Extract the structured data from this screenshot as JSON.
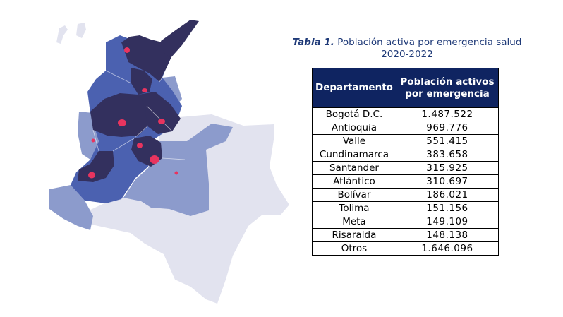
{
  "caption": {
    "label": "Tabla 1.",
    "text": "Población activa por emergencia salud 2020-2022"
  },
  "table": {
    "headers": [
      "Departamento",
      "Población activos por emergencia"
    ],
    "rows": [
      {
        "departamento": "Bogotá D.C.",
        "poblacion": "1.487.522"
      },
      {
        "departamento": "Antioquia",
        "poblacion": "969.776"
      },
      {
        "departamento": "Valle",
        "poblacion": "551.415"
      },
      {
        "departamento": "Cundinamarca",
        "poblacion": "383.658"
      },
      {
        "departamento": "Santander",
        "poblacion": "315.925"
      },
      {
        "departamento": "Atlántico",
        "poblacion": "310.697"
      },
      {
        "departamento": "Bolívar",
        "poblacion": "186.021"
      },
      {
        "departamento": "Tolima",
        "poblacion": "151.156"
      },
      {
        "departamento": "Meta",
        "poblacion": "149.109"
      },
      {
        "departamento": "Risaralda",
        "poblacion": "148.138"
      },
      {
        "departamento": "Otros",
        "poblacion": "1.646.096"
      }
    ]
  },
  "colors": {
    "caption": "#1f3a78",
    "header_bg": "#0f2461",
    "map_high": "#33305e",
    "map_medium": "#4b61b0",
    "map_low": "#8c9bcc",
    "map_lowest": "#e2e3ef",
    "marker": "#e8345f"
  }
}
